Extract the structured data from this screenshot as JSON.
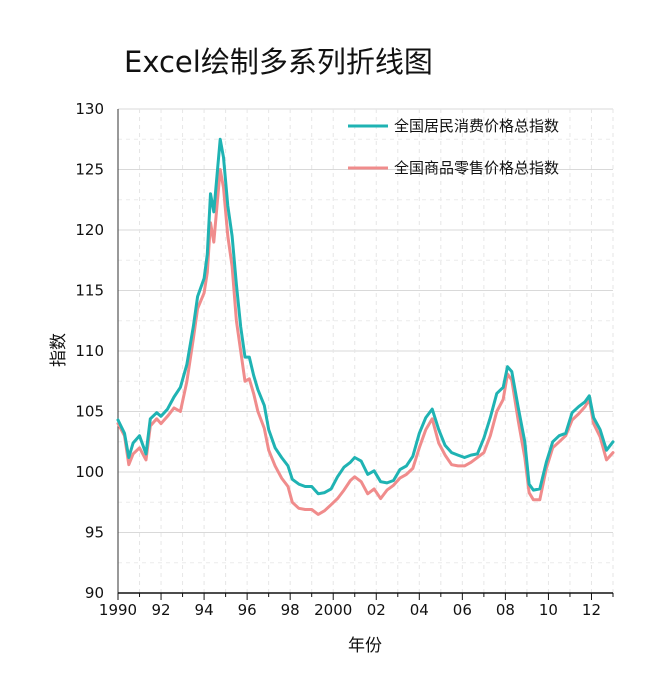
{
  "title": "Excel绘制多系列折线图",
  "chart_data": {
    "type": "line",
    "title": "Excel绘制多系列折线图",
    "xlabel": "年份",
    "ylabel": "指数",
    "ylim": [
      90,
      130
    ],
    "xlim": [
      1990,
      2013
    ],
    "y_ticks": [
      90,
      95,
      100,
      105,
      110,
      115,
      120,
      125,
      130
    ],
    "x_ticks": [
      1990,
      1992,
      1994,
      1996,
      1998,
      2000,
      2002,
      2004,
      2006,
      2008,
      2010,
      2012
    ],
    "x_tick_labels": [
      "1990",
      "92",
      "94",
      "96",
      "98",
      "2000",
      "02",
      "04",
      "06",
      "08",
      "10",
      "12"
    ],
    "grid": true,
    "legend_position": "top-right",
    "series": [
      {
        "name": "全国居民消费价格总指数",
        "color": "#1fb3b3",
        "x": [
          1990.0,
          1990.3,
          1990.5,
          1990.7,
          1991.0,
          1991.3,
          1991.5,
          1991.8,
          1992.0,
          1992.3,
          1992.6,
          1992.9,
          1993.2,
          1993.5,
          1993.7,
          1994.0,
          1994.15,
          1994.3,
          1994.45,
          1994.6,
          1994.75,
          1994.9,
          1995.1,
          1995.3,
          1995.5,
          1995.7,
          1995.9,
          1996.1,
          1996.3,
          1996.5,
          1996.8,
          1997.0,
          1997.3,
          1997.6,
          1997.9,
          1998.1,
          1998.4,
          1998.7,
          1999.0,
          1999.3,
          1999.6,
          1999.9,
          2000.2,
          2000.5,
          2000.8,
          2001.0,
          2001.3,
          2001.6,
          2001.9,
          2002.2,
          2002.5,
          2002.8,
          2003.1,
          2003.4,
          2003.7,
          2004.0,
          2004.3,
          2004.6,
          2004.9,
          2005.2,
          2005.5,
          2005.8,
          2006.1,
          2006.4,
          2006.7,
          2007.0,
          2007.3,
          2007.6,
          2007.9,
          2008.1,
          2008.3,
          2008.6,
          2008.9,
          2009.1,
          2009.3,
          2009.6,
          2009.9,
          2010.2,
          2010.5,
          2010.8,
          2011.1,
          2011.4,
          2011.7,
          2011.9,
          2012.1,
          2012.4,
          2012.7,
          2013.0
        ],
        "values": [
          104.3,
          103.2,
          101.2,
          102.4,
          103.0,
          101.5,
          104.4,
          104.9,
          104.6,
          105.2,
          106.2,
          107.0,
          108.9,
          112.0,
          114.5,
          116.0,
          118.0,
          123.0,
          121.5,
          124.5,
          127.5,
          126.0,
          122.0,
          119.5,
          115.5,
          112.0,
          109.5,
          109.5,
          108.0,
          106.8,
          105.5,
          103.5,
          102.0,
          101.2,
          100.5,
          99.4,
          99.0,
          98.8,
          98.8,
          98.2,
          98.3,
          98.6,
          99.6,
          100.4,
          100.8,
          101.2,
          100.9,
          99.8,
          100.1,
          99.2,
          99.1,
          99.3,
          100.2,
          100.5,
          101.3,
          103.2,
          104.5,
          105.2,
          103.5,
          102.2,
          101.6,
          101.4,
          101.2,
          101.4,
          101.5,
          102.8,
          104.5,
          106.5,
          107.0,
          108.7,
          108.3,
          105.3,
          102.5,
          99.0,
          98.5,
          98.6,
          100.8,
          102.5,
          103.0,
          103.2,
          104.9,
          105.4,
          105.8,
          106.3,
          104.5,
          103.5,
          101.8,
          102.5
        ]
      },
      {
        "name": "全国商品零售价格总指数",
        "color": "#f08c8c",
        "x": [
          1990.0,
          1990.3,
          1990.5,
          1990.7,
          1991.0,
          1991.3,
          1991.5,
          1991.8,
          1992.0,
          1992.3,
          1992.6,
          1992.9,
          1993.2,
          1993.5,
          1993.7,
          1994.0,
          1994.15,
          1994.3,
          1994.45,
          1994.6,
          1994.75,
          1994.9,
          1995.1,
          1995.3,
          1995.5,
          1995.7,
          1995.9,
          1996.1,
          1996.3,
          1996.5,
          1996.8,
          1997.0,
          1997.3,
          1997.6,
          1997.9,
          1998.1,
          1998.4,
          1998.7,
          1999.0,
          1999.3,
          1999.6,
          1999.9,
          2000.2,
          2000.5,
          2000.8,
          2001.0,
          2001.3,
          2001.6,
          2001.9,
          2002.2,
          2002.5,
          2002.8,
          2003.1,
          2003.4,
          2003.7,
          2004.0,
          2004.3,
          2004.6,
          2004.9,
          2005.2,
          2005.5,
          2005.8,
          2006.1,
          2006.4,
          2006.7,
          2007.0,
          2007.3,
          2007.6,
          2007.9,
          2008.1,
          2008.3,
          2008.6,
          2008.9,
          2009.1,
          2009.3,
          2009.6,
          2009.9,
          2010.2,
          2010.5,
          2010.8,
          2011.1,
          2011.4,
          2011.7,
          2011.9,
          2012.1,
          2012.4,
          2012.7,
          2013.0
        ],
        "values": [
          104.0,
          103.0,
          100.6,
          101.5,
          102.0,
          101.0,
          103.8,
          104.4,
          104.0,
          104.6,
          105.3,
          105.0,
          107.5,
          111.0,
          113.5,
          114.8,
          116.5,
          120.6,
          119.0,
          122.0,
          125.0,
          123.5,
          119.5,
          117.0,
          112.5,
          110.0,
          107.5,
          107.7,
          106.5,
          105.0,
          103.6,
          101.8,
          100.5,
          99.5,
          98.8,
          97.5,
          97.0,
          96.9,
          96.9,
          96.5,
          96.8,
          97.3,
          97.8,
          98.5,
          99.3,
          99.6,
          99.2,
          98.2,
          98.6,
          97.8,
          98.5,
          98.9,
          99.5,
          99.8,
          100.3,
          102.0,
          103.5,
          104.4,
          102.4,
          101.4,
          100.6,
          100.5,
          100.5,
          100.8,
          101.2,
          101.6,
          103.0,
          105.0,
          106.0,
          108.1,
          107.6,
          104.2,
          101.2,
          98.3,
          97.7,
          97.7,
          100.3,
          102.0,
          102.5,
          103.0,
          104.3,
          104.8,
          105.4,
          106.0,
          104.0,
          102.9,
          101.0,
          101.6
        ]
      }
    ]
  }
}
